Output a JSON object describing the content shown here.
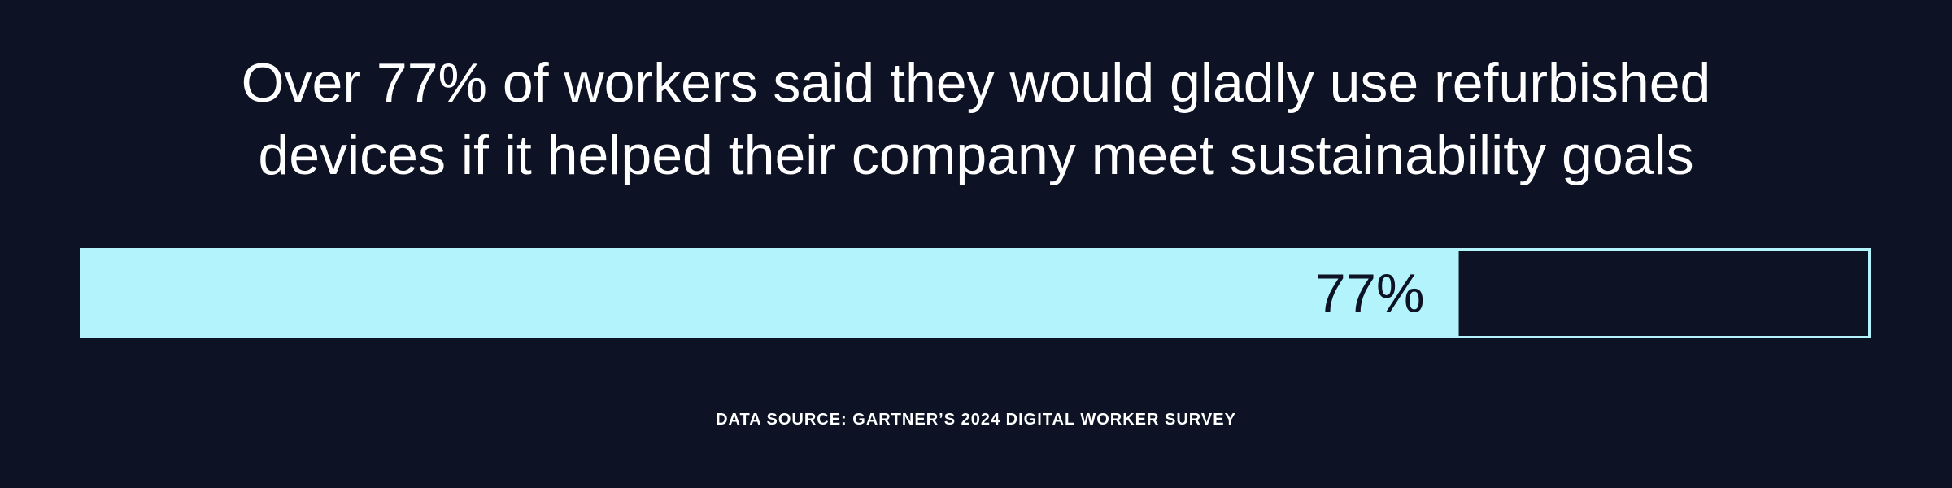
{
  "chart_data": {
    "type": "progress",
    "title": "Over 77% of workers said they would gladly use refurbished devices if it helped their company meet sustainability goals",
    "values": [
      77
    ],
    "value_labels": [
      "77%"
    ],
    "color": "#b3f3fc",
    "xlim": [
      0,
      100
    ],
    "source": "DATA SOURCE: GARTNER’S 2024 DIGITAL WORKER SURVEY"
  }
}
